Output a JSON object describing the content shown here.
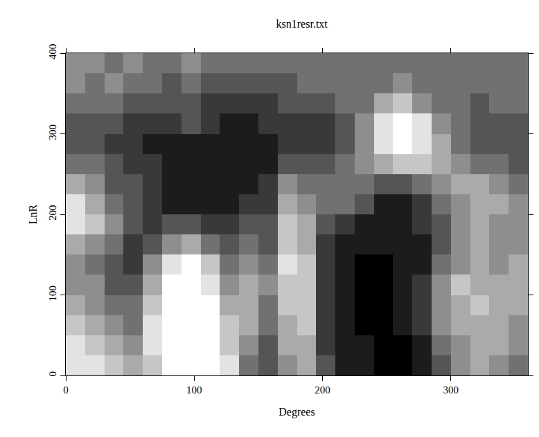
{
  "chart_data": {
    "type": "heatmap",
    "title": "ksn1resr.txt",
    "x_label": "Degrees",
    "y_label": "LnR",
    "x": [
      7.5,
      22.5,
      37.5,
      52.5,
      67.5,
      82.5,
      97.5,
      112.5,
      127.5,
      142.5,
      157.5,
      172.5,
      187.5,
      202.5,
      217.5,
      232.5,
      247.5,
      262.5,
      277.5,
      292.5,
      307.5,
      322.5,
      337.5,
      352.5
    ],
    "y": [
      12.5,
      37.5,
      62.5,
      87.5,
      112.5,
      137.5,
      162.5,
      187.5,
      212.5,
      237.5,
      262.5,
      287.5,
      312.5,
      337.5,
      362.5,
      387.5
    ],
    "z": [
      [
        8,
        8,
        7,
        6,
        7,
        9,
        9,
        9,
        8,
        4,
        3,
        5,
        6,
        3,
        1,
        1,
        0,
        0,
        1,
        3,
        5,
        6,
        5,
        4
      ],
      [
        8,
        7,
        6,
        5,
        8,
        9,
        9,
        9,
        7,
        5,
        3,
        6,
        6,
        2,
        1,
        1,
        0,
        0,
        1,
        4,
        5,
        6,
        6,
        5
      ],
      [
        7,
        6,
        5,
        4,
        8,
        9,
        9,
        9,
        7,
        6,
        4,
        6,
        7,
        2,
        1,
        0,
        0,
        1,
        2,
        5,
        6,
        6,
        6,
        5
      ],
      [
        6,
        5,
        4,
        4,
        7,
        9,
        9,
        9,
        6,
        6,
        4,
        7,
        7,
        2,
        1,
        0,
        0,
        1,
        2,
        5,
        6,
        7,
        6,
        6
      ],
      [
        5,
        5,
        3,
        3,
        6,
        9,
        9,
        8,
        5,
        6,
        5,
        7,
        7,
        2,
        1,
        0,
        0,
        1,
        2,
        5,
        7,
        6,
        6,
        6
      ],
      [
        5,
        4,
        3,
        2,
        5,
        8,
        9,
        7,
        4,
        5,
        4,
        8,
        7,
        2,
        1,
        0,
        0,
        1,
        1,
        4,
        5,
        6,
        5,
        6
      ],
      [
        6,
        5,
        4,
        2,
        3,
        5,
        6,
        4,
        3,
        4,
        3,
        7,
        6,
        2,
        1,
        1,
        1,
        1,
        1,
        3,
        5,
        6,
        5,
        5
      ],
      [
        8,
        7,
        5,
        3,
        2,
        3,
        3,
        2,
        2,
        3,
        3,
        7,
        6,
        3,
        2,
        1,
        1,
        1,
        2,
        3,
        5,
        6,
        5,
        5
      ],
      [
        8,
        6,
        4,
        3,
        2,
        1,
        1,
        1,
        1,
        2,
        2,
        6,
        5,
        4,
        4,
        3,
        1,
        1,
        2,
        4,
        5,
        6,
        6,
        5
      ],
      [
        6,
        5,
        3,
        3,
        2,
        1,
        1,
        1,
        1,
        1,
        2,
        5,
        4,
        4,
        4,
        4,
        3,
        3,
        4,
        5,
        6,
        6,
        5,
        4
      ],
      [
        4,
        4,
        3,
        2,
        2,
        1,
        1,
        1,
        1,
        1,
        1,
        3,
        3,
        3,
        4,
        5,
        6,
        7,
        7,
        6,
        5,
        4,
        4,
        3
      ],
      [
        3,
        3,
        2,
        2,
        1,
        1,
        1,
        1,
        1,
        1,
        1,
        2,
        2,
        2,
        3,
        5,
        8,
        9,
        8,
        6,
        4,
        3,
        3,
        3
      ],
      [
        3,
        3,
        3,
        2,
        2,
        2,
        3,
        2,
        1,
        1,
        2,
        2,
        2,
        2,
        3,
        5,
        8,
        9,
        8,
        5,
        4,
        3,
        3,
        3
      ],
      [
        4,
        4,
        4,
        3,
        3,
        3,
        3,
        2,
        2,
        2,
        2,
        3,
        3,
        3,
        4,
        4,
        6,
        7,
        5,
        4,
        4,
        3,
        4,
        4
      ],
      [
        5,
        4,
        5,
        4,
        4,
        3,
        4,
        3,
        3,
        3,
        3,
        3,
        4,
        4,
        4,
        4,
        4,
        5,
        4,
        4,
        4,
        4,
        4,
        4
      ],
      [
        5,
        5,
        4,
        5,
        4,
        4,
        5,
        4,
        4,
        4,
        4,
        4,
        4,
        4,
        4,
        4,
        4,
        4,
        4,
        4,
        4,
        4,
        4,
        4
      ]
    ],
    "zlim": [
      0,
      9
    ],
    "colors": [
      "#000000",
      "#ffffff"
    ],
    "xlim": [
      0,
      360
    ],
    "xticks": [
      0,
      100,
      200,
      300
    ],
    "ylim": [
      0,
      400
    ],
    "yticks": [
      0,
      100,
      200,
      300,
      400
    ],
    "grid": false
  }
}
